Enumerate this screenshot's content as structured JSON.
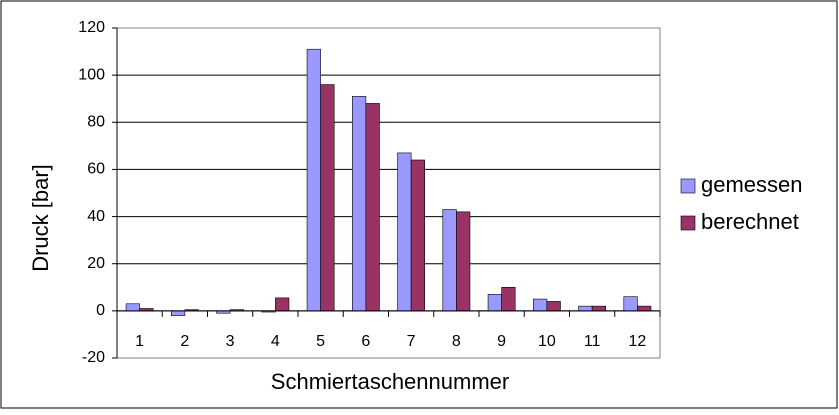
{
  "chart_data": {
    "type": "bar",
    "x_label": "Schmiertaschennummer",
    "y_label": "Druck [bar]",
    "categories": [
      "1",
      "2",
      "3",
      "4",
      "5",
      "6",
      "7",
      "8",
      "9",
      "10",
      "11",
      "12"
    ],
    "series": [
      {
        "name": "gemessen",
        "color": "#9999ff",
        "values": [
          3,
          -2,
          -1,
          -0.5,
          111,
          91,
          67,
          43,
          7,
          5,
          2,
          6
        ]
      },
      {
        "name": "berechnet",
        "color": "#993366",
        "values": [
          1,
          0.5,
          0.5,
          5.5,
          96,
          88,
          64,
          42,
          10,
          4,
          2,
          2
        ]
      }
    ],
    "ylim": [
      -20,
      120
    ],
    "yticks": [
      -20,
      0,
      20,
      40,
      60,
      80,
      100,
      120
    ],
    "grid": true,
    "legend": "right"
  }
}
